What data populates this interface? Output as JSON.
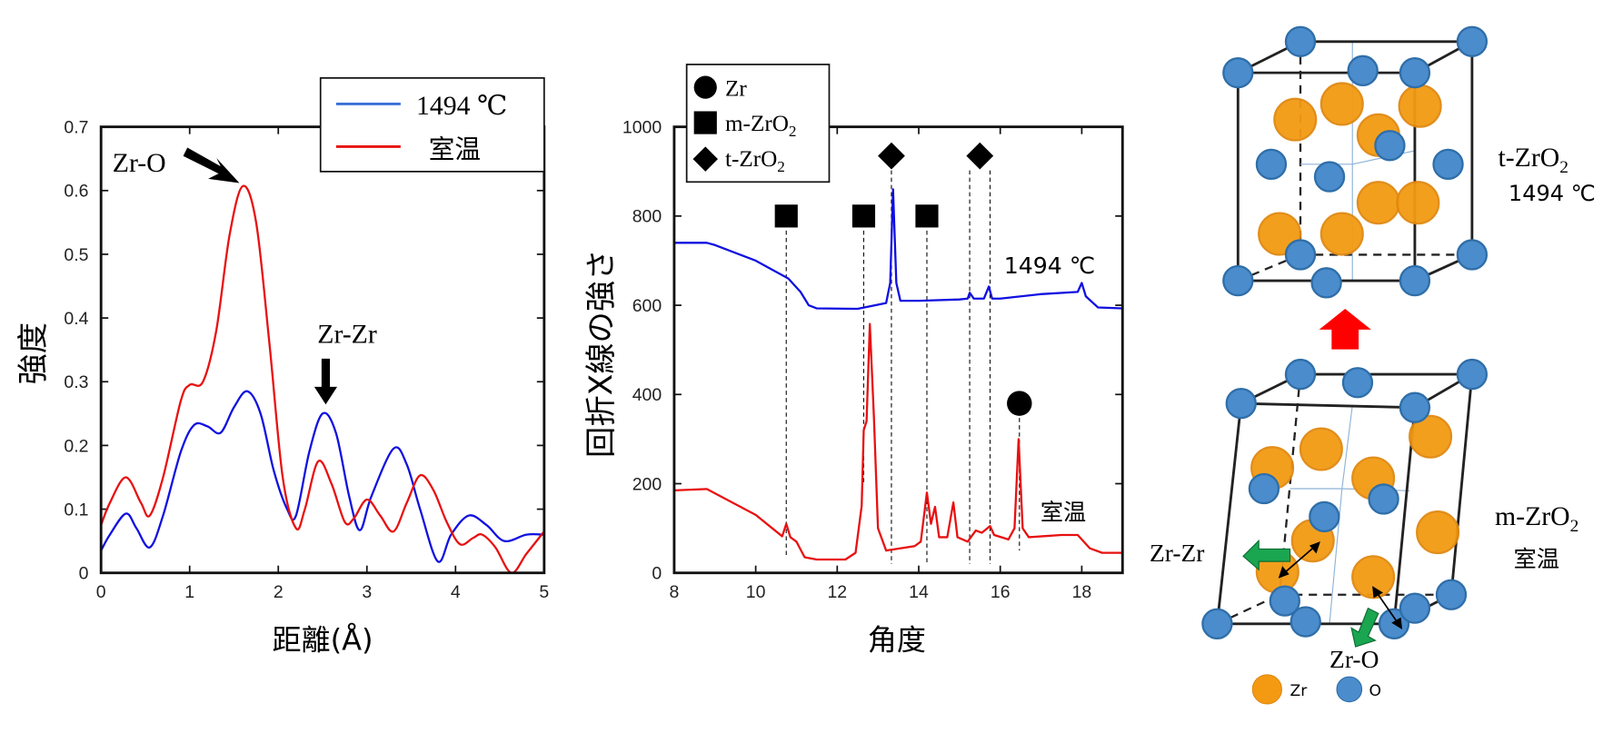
{
  "chart_data": [
    {
      "type": "line",
      "title": "",
      "xlabel": "距離(Å)",
      "ylabel": "強度",
      "xlim": [
        0,
        5
      ],
      "ylim": [
        0,
        0.7
      ],
      "xticks": [
        "0",
        "1",
        "2",
        "3",
        "4",
        "5"
      ],
      "yticks": [
        "0",
        "0.1",
        "0.2",
        "0.3",
        "0.4",
        "0.5",
        "0.6",
        "0.7"
      ],
      "legend": {
        "placement": "top-right",
        "entries": [
          "1494 ℃",
          "室温"
        ]
      },
      "annotations": [
        {
          "text": "Zr-O",
          "x": 1.6,
          "y": 0.607
        },
        {
          "text": "Zr-Zr",
          "x": 2.5,
          "y": 0.25
        }
      ],
      "series": [
        {
          "name": "1494 ℃",
          "color": "#1010e0",
          "points": [
            [
              0,
              0.035
            ],
            [
              0.1,
              0.06
            ],
            [
              0.28,
              0.093
            ],
            [
              0.4,
              0.07
            ],
            [
              0.55,
              0.04
            ],
            [
              0.7,
              0.09
            ],
            [
              0.9,
              0.19
            ],
            [
              1.05,
              0.232
            ],
            [
              1.2,
              0.23
            ],
            [
              1.35,
              0.22
            ],
            [
              1.5,
              0.26
            ],
            [
              1.65,
              0.285
            ],
            [
              1.8,
              0.25
            ],
            [
              1.95,
              0.16
            ],
            [
              2.1,
              0.1
            ],
            [
              2.2,
              0.09
            ],
            [
              2.35,
              0.19
            ],
            [
              2.5,
              0.25
            ],
            [
              2.65,
              0.22
            ],
            [
              2.8,
              0.12
            ],
            [
              2.92,
              0.067
            ],
            [
              3.05,
              0.12
            ],
            [
              3.3,
              0.195
            ],
            [
              3.45,
              0.17
            ],
            [
              3.6,
              0.1
            ],
            [
              3.8,
              0.018
            ],
            [
              3.95,
              0.06
            ],
            [
              4.15,
              0.09
            ],
            [
              4.35,
              0.075
            ],
            [
              4.55,
              0.05
            ],
            [
              4.8,
              0.06
            ],
            [
              5,
              0.06
            ]
          ]
        },
        {
          "name": "室温",
          "color": "#e81010",
          "points": [
            [
              0,
              0.075
            ],
            [
              0.1,
              0.11
            ],
            [
              0.28,
              0.15
            ],
            [
              0.45,
              0.11
            ],
            [
              0.55,
              0.09
            ],
            [
              0.7,
              0.15
            ],
            [
              0.9,
              0.27
            ],
            [
              1.0,
              0.295
            ],
            [
              1.15,
              0.3
            ],
            [
              1.3,
              0.38
            ],
            [
              1.45,
              0.53
            ],
            [
              1.6,
              0.607
            ],
            [
              1.75,
              0.55
            ],
            [
              1.9,
              0.36
            ],
            [
              2.05,
              0.15
            ],
            [
              2.2,
              0.07
            ],
            [
              2.3,
              0.1
            ],
            [
              2.45,
              0.175
            ],
            [
              2.6,
              0.14
            ],
            [
              2.75,
              0.08
            ],
            [
              2.85,
              0.085
            ],
            [
              3.0,
              0.115
            ],
            [
              3.15,
              0.09
            ],
            [
              3.3,
              0.065
            ],
            [
              3.45,
              0.11
            ],
            [
              3.6,
              0.153
            ],
            [
              3.75,
              0.13
            ],
            [
              3.9,
              0.08
            ],
            [
              4.05,
              0.045
            ],
            [
              4.2,
              0.055
            ],
            [
              4.3,
              0.06
            ],
            [
              4.45,
              0.04
            ],
            [
              4.63,
              0.0
            ],
            [
              4.8,
              0.03
            ],
            [
              5,
              0.065
            ]
          ]
        }
      ]
    },
    {
      "type": "line",
      "title": "",
      "xlabel": "角度",
      "ylabel": "回折X線の強さ",
      "xlim": [
        8,
        19
      ],
      "ylim": [
        0,
        1000
      ],
      "xticks": [
        "8",
        "10",
        "12",
        "14",
        "16",
        "18"
      ],
      "yticks": [
        "0",
        "200",
        "400",
        "600",
        "800",
        "1000"
      ],
      "legend": {
        "placement": "top-left",
        "entries": [
          {
            "symbol": "circle",
            "label": "Zr"
          },
          {
            "symbol": "square",
            "label": "m-ZrO",
            "sub": "2"
          },
          {
            "symbol": "diamond",
            "label": "t-ZrO",
            "sub": "2"
          }
        ]
      },
      "series_labels": [
        {
          "text": "1494 ℃",
          "x": 17.2,
          "y": 700
        },
        {
          "text": "室温",
          "x": 17.5,
          "y": 140
        }
      ],
      "peak_markers": [
        {
          "symbol": "square",
          "x": 10.75,
          "y": 800,
          "line_to": 110
        },
        {
          "symbol": "square",
          "x": 12.65,
          "y": 800,
          "line_to": 200
        },
        {
          "symbol": "square",
          "x": 14.2,
          "y": 800,
          "line_to": 50
        },
        {
          "symbol": "diamond",
          "x": 13.33,
          "y": 935,
          "line_to": 50
        },
        {
          "symbol": "diamond",
          "x": 15.5,
          "y": 935,
          "line_to": null
        },
        {
          "symbol": "circle",
          "x": 16.47,
          "y": 380,
          "line_to": 60
        }
      ],
      "dashed_lines": [
        10.75,
        12.65,
        13.33,
        14.2,
        15.25,
        15.75,
        16.47
      ],
      "series": [
        {
          "name": "1494 ℃",
          "color": "#1010e0",
          "points": [
            [
              8,
              740
            ],
            [
              8.8,
              740
            ],
            [
              9,
              735
            ],
            [
              10,
              700
            ],
            [
              10.8,
              660
            ],
            [
              11.1,
              630
            ],
            [
              11.3,
              600
            ],
            [
              11.5,
              593
            ],
            [
              12.5,
              592
            ],
            [
              13.2,
              605
            ],
            [
              13.3,
              650
            ],
            [
              13.37,
              860
            ],
            [
              13.45,
              650
            ],
            [
              13.55,
              610
            ],
            [
              14,
              610
            ],
            [
              15,
              613
            ],
            [
              15.2,
              615
            ],
            [
              15.25,
              628
            ],
            [
              15.35,
              615
            ],
            [
              15.6,
              615
            ],
            [
              15.72,
              642
            ],
            [
              15.8,
              615
            ],
            [
              16,
              615
            ],
            [
              17,
              625
            ],
            [
              17.9,
              630
            ],
            [
              18,
              650
            ],
            [
              18.1,
              620
            ],
            [
              18.4,
              595
            ],
            [
              19,
              593
            ]
          ]
        },
        {
          "name": "室温",
          "color": "#e81010",
          "points": [
            [
              8,
              185
            ],
            [
              8.8,
              188
            ],
            [
              10,
              130
            ],
            [
              10.65,
              82
            ],
            [
              10.75,
              110
            ],
            [
              10.85,
              80
            ],
            [
              11,
              70
            ],
            [
              11.2,
              35
            ],
            [
              11.5,
              30
            ],
            [
              12.2,
              30
            ],
            [
              12.45,
              45
            ],
            [
              12.6,
              150
            ],
            [
              12.65,
              320
            ],
            [
              12.72,
              340
            ],
            [
              12.8,
              558
            ],
            [
              12.9,
              350
            ],
            [
              13.0,
              100
            ],
            [
              13.2,
              50
            ],
            [
              13.9,
              60
            ],
            [
              14.05,
              70
            ],
            [
              14.2,
              180
            ],
            [
              14.3,
              110
            ],
            [
              14.4,
              148
            ],
            [
              14.5,
              80
            ],
            [
              14.7,
              80
            ],
            [
              14.85,
              158
            ],
            [
              14.95,
              80
            ],
            [
              15.2,
              70
            ],
            [
              15.4,
              95
            ],
            [
              15.55,
              90
            ],
            [
              15.75,
              105
            ],
            [
              15.85,
              85
            ],
            [
              16.2,
              75
            ],
            [
              16.35,
              100
            ],
            [
              16.45,
              300
            ],
            [
              16.55,
              100
            ],
            [
              16.7,
              80
            ],
            [
              17.5,
              85
            ],
            [
              17.9,
              85
            ],
            [
              18.2,
              55
            ],
            [
              18.5,
              45
            ],
            [
              19,
              45
            ]
          ]
        }
      ]
    }
  ],
  "diagram": {
    "top_phase": {
      "name": "t-ZrO",
      "sub": "2",
      "temp": "1494 ℃"
    },
    "bottom_phase": {
      "name": "m-ZrO",
      "sub": "2",
      "temp": "室温"
    },
    "bond_labels": {
      "zr_zr": "Zr-Zr",
      "zr_o": "Zr-O"
    },
    "legend": {
      "zr": "Zr",
      "o": "O"
    },
    "colors": {
      "zr": "#f39a12",
      "o": "#4a8ccc",
      "transition_arrow": "#ff0000",
      "shift_arrow": "#1aa550"
    }
  }
}
